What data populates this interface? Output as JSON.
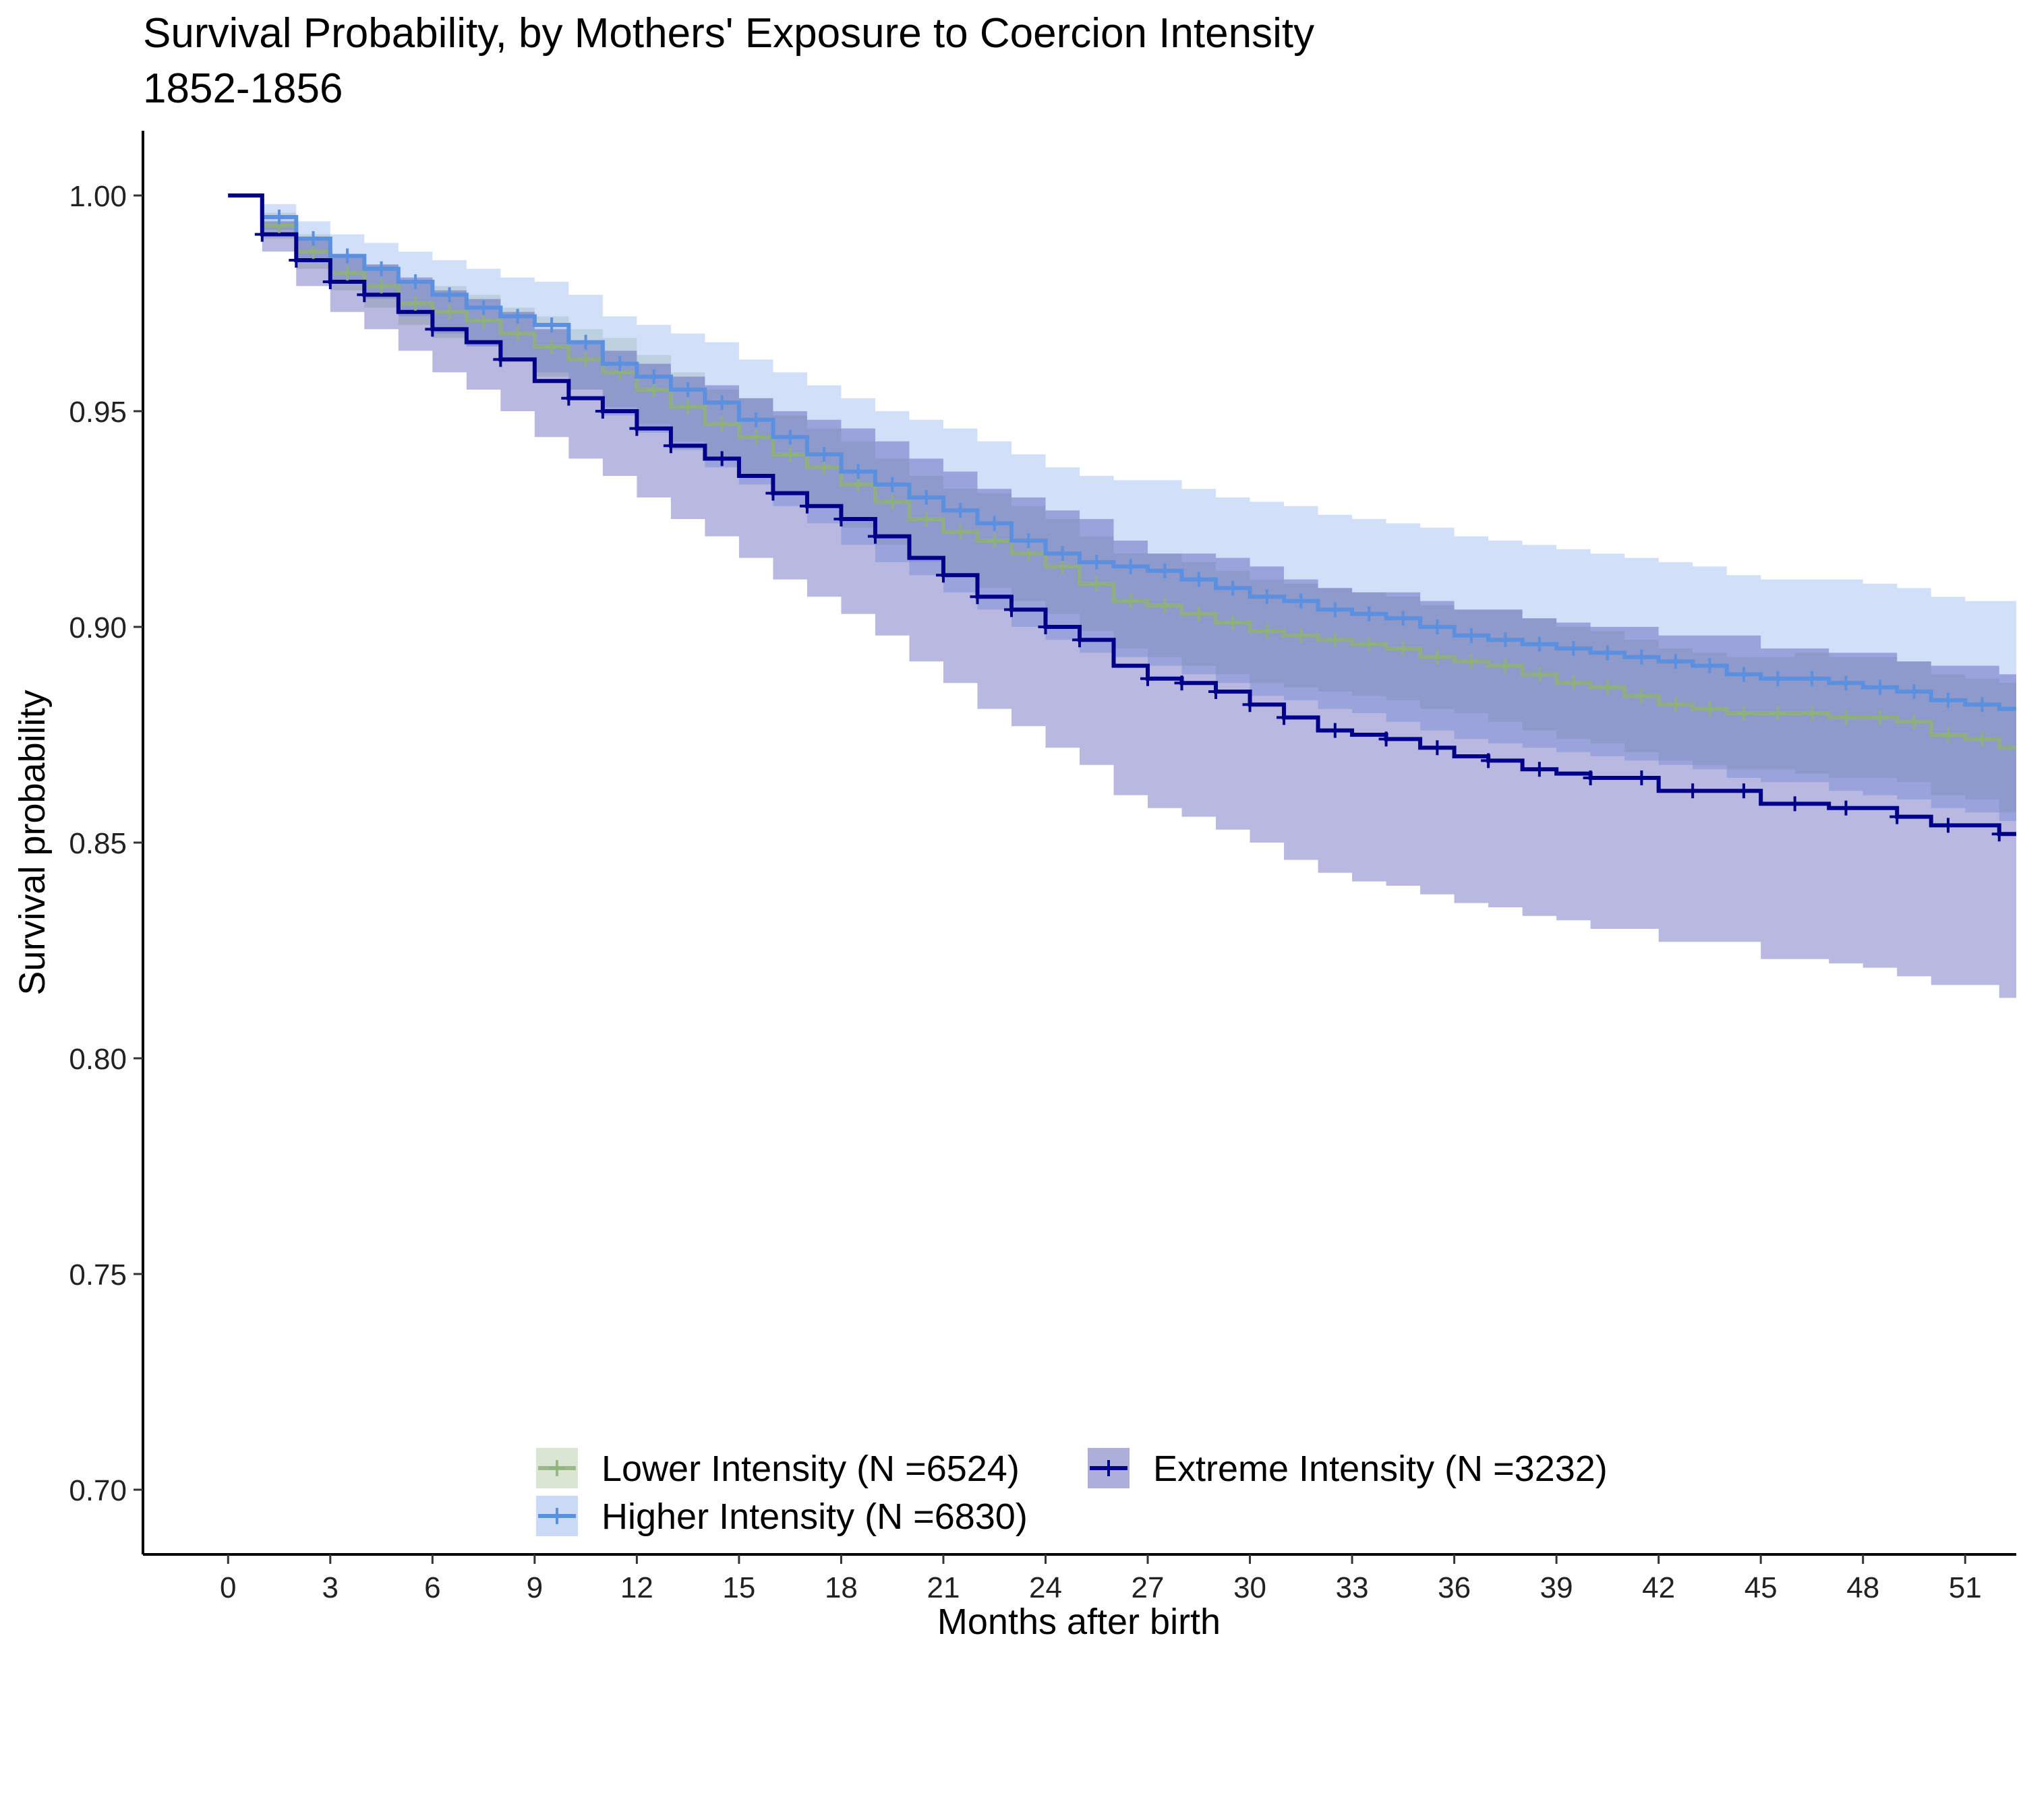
{
  "chart_data": {
    "type": "line",
    "title": "Survival Probability, by Mothers' Exposure to Coercion Intensity",
    "subtitle": "1852-1856",
    "xlabel": "Months after birth",
    "ylabel": "Survival probability",
    "xlim": [
      -2.5,
      52.5
    ],
    "ylim": [
      0.685,
      1.015
    ],
    "x_ticks": [
      0,
      3,
      6,
      9,
      12,
      15,
      18,
      21,
      24,
      27,
      30,
      33,
      36,
      39,
      42,
      45,
      48,
      51
    ],
    "y_ticks": [
      0.7,
      0.75,
      0.8,
      0.85,
      0.9,
      0.95,
      1.0
    ],
    "x_tick_labels": [
      "0",
      "3",
      "6",
      "9",
      "12",
      "15",
      "18",
      "21",
      "24",
      "27",
      "30",
      "33",
      "36",
      "39",
      "42",
      "45",
      "48",
      "51"
    ],
    "y_tick_labels": [
      "0.70",
      "0.75",
      "0.80",
      "0.85",
      "0.90",
      "0.95",
      "1.00"
    ],
    "grid": false,
    "legend_position": "bottom",
    "series": [
      {
        "name": "Lower Intensity (N =6524)",
        "color": "#8fb17a",
        "band_color": "#8fb17a",
        "band_opacity": 0.28,
        "line_opacity": 0.85,
        "x": [
          0,
          1,
          2,
          3,
          4,
          5,
          6,
          7,
          8,
          9,
          10,
          11,
          12,
          13,
          14,
          15,
          16,
          17,
          18,
          19,
          20,
          21,
          22,
          23,
          24,
          25,
          26,
          27,
          28,
          29,
          30,
          31,
          32,
          33,
          34,
          35,
          36,
          37,
          38,
          39,
          40,
          41,
          42,
          43,
          44,
          45,
          46,
          47,
          48,
          49,
          50,
          51,
          52
        ],
        "y": [
          1.0,
          0.993,
          0.987,
          0.982,
          0.979,
          0.975,
          0.973,
          0.971,
          0.968,
          0.965,
          0.962,
          0.959,
          0.955,
          0.951,
          0.947,
          0.944,
          0.94,
          0.937,
          0.933,
          0.929,
          0.925,
          0.922,
          0.92,
          0.917,
          0.914,
          0.91,
          0.906,
          0.905,
          0.903,
          0.901,
          0.899,
          0.898,
          0.897,
          0.896,
          0.895,
          0.893,
          0.892,
          0.891,
          0.889,
          0.887,
          0.886,
          0.884,
          0.882,
          0.881,
          0.88,
          0.88,
          0.88,
          0.879,
          0.879,
          0.878,
          0.875,
          0.874,
          0.872
        ],
        "lower": [
          1.0,
          0.99,
          0.983,
          0.978,
          0.974,
          0.97,
          0.967,
          0.965,
          0.962,
          0.958,
          0.955,
          0.951,
          0.947,
          0.943,
          0.939,
          0.935,
          0.931,
          0.928,
          0.923,
          0.919,
          0.915,
          0.912,
          0.909,
          0.906,
          0.903,
          0.899,
          0.895,
          0.893,
          0.891,
          0.889,
          0.887,
          0.886,
          0.885,
          0.884,
          0.883,
          0.881,
          0.88,
          0.878,
          0.876,
          0.874,
          0.873,
          0.871,
          0.869,
          0.868,
          0.867,
          0.867,
          0.866,
          0.865,
          0.865,
          0.864,
          0.861,
          0.86,
          0.857
        ],
        "upper": [
          1.0,
          0.996,
          0.991,
          0.986,
          0.984,
          0.98,
          0.979,
          0.977,
          0.974,
          0.972,
          0.969,
          0.967,
          0.963,
          0.959,
          0.955,
          0.953,
          0.949,
          0.946,
          0.943,
          0.939,
          0.935,
          0.932,
          0.931,
          0.928,
          0.925,
          0.921,
          0.917,
          0.917,
          0.915,
          0.913,
          0.911,
          0.91,
          0.909,
          0.908,
          0.907,
          0.905,
          0.904,
          0.904,
          0.902,
          0.9,
          0.899,
          0.897,
          0.895,
          0.894,
          0.893,
          0.893,
          0.894,
          0.893,
          0.893,
          0.892,
          0.889,
          0.888,
          0.887
        ],
        "censor_x": [
          1.5,
          2.5,
          3.5,
          4.5,
          5.5,
          6.5,
          7.5,
          8.5,
          9.5,
          10.5,
          11.5,
          12.5,
          13.5,
          14.5,
          15.5,
          16.5,
          17.5,
          18.5,
          19.5,
          20.5,
          21.5,
          22.5,
          23.5,
          24.5,
          25.5,
          26.5,
          27.5,
          28.5,
          29.5,
          30.5,
          31.5,
          32.5,
          33.5,
          34.5,
          35.5,
          36.5,
          37.5,
          38.5,
          39.5,
          40.5,
          41.5,
          42.5,
          43.5,
          44.5,
          45.5,
          46.5,
          47.5,
          48.5,
          49.5,
          50.5,
          51.5
        ]
      },
      {
        "name": "Higher Intensity (N =6830)",
        "color": "#5b8fe0",
        "band_color": "#6f9be8",
        "band_opacity": 0.32,
        "line_opacity": 1.0,
        "x": [
          0,
          1,
          2,
          3,
          4,
          5,
          6,
          7,
          8,
          9,
          10,
          11,
          12,
          13,
          14,
          15,
          16,
          17,
          18,
          19,
          20,
          21,
          22,
          23,
          24,
          25,
          26,
          27,
          28,
          29,
          30,
          31,
          32,
          33,
          34,
          35,
          36,
          37,
          38,
          39,
          40,
          41,
          42,
          43,
          44,
          45,
          46,
          47,
          48,
          49,
          50,
          51,
          52
        ],
        "y": [
          1.0,
          0.995,
          0.99,
          0.986,
          0.983,
          0.98,
          0.977,
          0.974,
          0.972,
          0.97,
          0.966,
          0.961,
          0.958,
          0.955,
          0.952,
          0.948,
          0.944,
          0.94,
          0.936,
          0.933,
          0.93,
          0.927,
          0.924,
          0.92,
          0.917,
          0.915,
          0.914,
          0.913,
          0.911,
          0.909,
          0.907,
          0.906,
          0.904,
          0.903,
          0.902,
          0.9,
          0.898,
          0.897,
          0.896,
          0.895,
          0.894,
          0.893,
          0.892,
          0.891,
          0.889,
          0.888,
          0.888,
          0.887,
          0.886,
          0.885,
          0.883,
          0.882,
          0.881
        ],
        "lower": [
          1.0,
          0.992,
          0.985,
          0.98,
          0.976,
          0.972,
          0.968,
          0.965,
          0.962,
          0.959,
          0.955,
          0.949,
          0.945,
          0.941,
          0.937,
          0.933,
          0.928,
          0.924,
          0.919,
          0.915,
          0.912,
          0.908,
          0.904,
          0.9,
          0.897,
          0.894,
          0.893,
          0.891,
          0.889,
          0.887,
          0.884,
          0.883,
          0.881,
          0.88,
          0.878,
          0.876,
          0.874,
          0.873,
          0.872,
          0.871,
          0.87,
          0.869,
          0.868,
          0.867,
          0.865,
          0.864,
          0.864,
          0.862,
          0.861,
          0.86,
          0.858,
          0.857,
          0.855
        ],
        "upper": [
          1.0,
          0.998,
          0.994,
          0.991,
          0.989,
          0.987,
          0.985,
          0.983,
          0.981,
          0.98,
          0.977,
          0.972,
          0.97,
          0.968,
          0.966,
          0.962,
          0.959,
          0.956,
          0.953,
          0.95,
          0.948,
          0.946,
          0.943,
          0.94,
          0.937,
          0.935,
          0.934,
          0.934,
          0.932,
          0.93,
          0.929,
          0.928,
          0.926,
          0.925,
          0.924,
          0.923,
          0.921,
          0.92,
          0.919,
          0.918,
          0.917,
          0.916,
          0.915,
          0.914,
          0.912,
          0.911,
          0.911,
          0.911,
          0.91,
          0.909,
          0.907,
          0.906,
          0.906
        ],
        "censor_x": [
          1.5,
          2.5,
          3.5,
          4.5,
          5.5,
          6.5,
          7.5,
          8.5,
          9.5,
          10.5,
          11.5,
          12.5,
          13.5,
          14.5,
          15.5,
          16.5,
          17.5,
          18.5,
          19.5,
          20.5,
          21.5,
          22.5,
          23.5,
          24.5,
          25.5,
          26.5,
          27.5,
          28.5,
          29.5,
          30.5,
          31.5,
          32.5,
          33.5,
          34.5,
          35.5,
          36.5,
          37.5,
          38.5,
          39.5,
          40.5,
          41.5,
          42.5,
          43.5,
          44.5,
          45.5,
          46.5,
          47.5,
          48.5,
          49.5,
          50.5,
          51.5
        ]
      },
      {
        "name": "Extreme Intensity (N =3232)",
        "color": "#00008b",
        "band_color": "#3a3aa8",
        "band_opacity": 0.36,
        "line_opacity": 1.0,
        "x": [
          0,
          1,
          2,
          3,
          4,
          5,
          6,
          7,
          8,
          9,
          10,
          11,
          12,
          13,
          14,
          15,
          16,
          17,
          18,
          19,
          20,
          21,
          22,
          23,
          24,
          25,
          26,
          27,
          28,
          29,
          30,
          31,
          32,
          33,
          34,
          35,
          36,
          37,
          38,
          39,
          40,
          41,
          42,
          43,
          44,
          45,
          46,
          47,
          48,
          49,
          50,
          51,
          52
        ],
        "y": [
          1.0,
          0.991,
          0.985,
          0.98,
          0.977,
          0.973,
          0.969,
          0.966,
          0.962,
          0.957,
          0.953,
          0.95,
          0.946,
          0.942,
          0.939,
          0.935,
          0.931,
          0.928,
          0.925,
          0.921,
          0.916,
          0.912,
          0.907,
          0.904,
          0.9,
          0.897,
          0.891,
          0.888,
          0.887,
          0.885,
          0.882,
          0.879,
          0.876,
          0.875,
          0.874,
          0.872,
          0.87,
          0.869,
          0.867,
          0.866,
          0.865,
          0.865,
          0.862,
          0.862,
          0.862,
          0.859,
          0.859,
          0.858,
          0.858,
          0.856,
          0.854,
          0.854,
          0.852
        ],
        "lower": [
          1.0,
          0.987,
          0.979,
          0.973,
          0.969,
          0.964,
          0.959,
          0.955,
          0.95,
          0.944,
          0.939,
          0.935,
          0.93,
          0.925,
          0.921,
          0.916,
          0.911,
          0.907,
          0.903,
          0.898,
          0.892,
          0.887,
          0.881,
          0.877,
          0.872,
          0.868,
          0.861,
          0.858,
          0.856,
          0.853,
          0.85,
          0.846,
          0.843,
          0.841,
          0.84,
          0.838,
          0.836,
          0.835,
          0.833,
          0.832,
          0.83,
          0.83,
          0.827,
          0.827,
          0.827,
          0.823,
          0.823,
          0.822,
          0.821,
          0.819,
          0.817,
          0.817,
          0.814
        ],
        "upper": [
          1.0,
          0.994,
          0.99,
          0.986,
          0.984,
          0.981,
          0.978,
          0.976,
          0.973,
          0.969,
          0.966,
          0.964,
          0.961,
          0.958,
          0.956,
          0.953,
          0.95,
          0.948,
          0.946,
          0.943,
          0.939,
          0.936,
          0.932,
          0.93,
          0.927,
          0.925,
          0.92,
          0.917,
          0.917,
          0.916,
          0.914,
          0.911,
          0.909,
          0.908,
          0.908,
          0.906,
          0.904,
          0.904,
          0.902,
          0.901,
          0.9,
          0.9,
          0.898,
          0.898,
          0.898,
          0.895,
          0.895,
          0.894,
          0.894,
          0.892,
          0.891,
          0.891,
          0.889
        ],
        "censor_x": [
          1,
          2,
          3,
          4,
          6,
          8,
          10,
          11,
          12,
          13,
          14.5,
          16,
          17,
          18,
          19,
          21,
          22,
          23,
          24,
          25,
          27,
          28,
          29,
          30,
          31,
          32.5,
          34,
          35.5,
          37,
          38.5,
          40,
          41.5,
          43,
          44.5,
          46,
          47.5,
          49,
          50.5,
          52
        ]
      }
    ]
  }
}
